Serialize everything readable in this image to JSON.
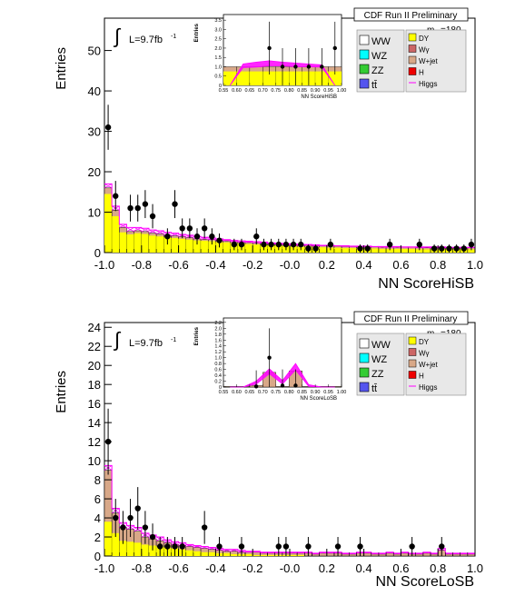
{
  "chart_data": [
    {
      "type": "histogram",
      "banner": "CDF Run II Preliminary",
      "xlabel": "NN ScoreHiSB",
      "ylabel": "Entries",
      "lumi_label": "L=9.7fb",
      "lumi_sup": "-1",
      "mass_label": "m",
      "mass_sub": "H",
      "mass_value": "=180",
      "xlim": [
        -1.0,
        1.0
      ],
      "ylim": [
        0,
        58
      ],
      "x_ticks": [
        -1.0,
        -0.8,
        -0.6,
        -0.4,
        -0.2,
        0.0,
        0.2,
        0.4,
        0.6,
        0.8,
        1.0
      ],
      "x_tick_labels": [
        "-1.0",
        "-0.8",
        "-0.6",
        "-0.4",
        "-0.2",
        "-0.0",
        "0.2",
        "0.4",
        "0.6",
        "0.8",
        "1.0"
      ],
      "y_ticks": [
        0,
        10,
        20,
        30,
        40,
        50
      ],
      "legend_left": [
        "WW",
        "WZ",
        "ZZ",
        "tt̄"
      ],
      "legend_right": [
        "DY",
        "Wγ",
        "W+jet",
        "H",
        "Higgs"
      ],
      "colors": {
        "WW": "#ffffff",
        "WZ": "#00ffff",
        "ZZ": "#33cc33",
        "tt": "#5555ee",
        "DY": "#ffff00",
        "Wg": "#cc6666",
        "Wjet": "#d8a888",
        "H": "#ee0000",
        "Higgs": "#ff00ff"
      },
      "bin_edges": [
        -1.0,
        -0.96,
        -0.92,
        -0.88,
        -0.84,
        -0.8,
        -0.76,
        -0.72,
        -0.68,
        -0.64,
        -0.6,
        -0.56,
        -0.52,
        -0.48,
        -0.44,
        -0.4,
        -0.36,
        -0.32,
        -0.28,
        -0.24,
        -0.2,
        -0.16,
        -0.12,
        -0.08,
        -0.04,
        0.0,
        0.04,
        0.08,
        0.12,
        0.16,
        0.2,
        0.24,
        0.28,
        0.32,
        0.36,
        0.4,
        0.44,
        0.48,
        0.52,
        0.56,
        0.6,
        0.64,
        0.68,
        0.72,
        0.76,
        0.8,
        0.84,
        0.88,
        0.92,
        0.96,
        1.0
      ],
      "dy_background": [
        14.5,
        9.0,
        5.0,
        4.5,
        4.8,
        4.6,
        4.2,
        4.0,
        3.8,
        3.6,
        3.4,
        3.2,
        3.0,
        2.9,
        2.8,
        2.6,
        2.5,
        2.3,
        2.2,
        2.1,
        2.0,
        1.9,
        1.8,
        1.7,
        1.6,
        1.5,
        1.4,
        1.4,
        1.3,
        1.3,
        1.2,
        1.2,
        1.1,
        1.1,
        1.0,
        1.0,
        1.0,
        0.9,
        0.9,
        0.9,
        0.9,
        0.9,
        0.8,
        0.8,
        0.8,
        0.8,
        0.8,
        0.8,
        0.8,
        0.8
      ],
      "total_background": [
        16.0,
        10.5,
        6.2,
        5.2,
        5.4,
        5.2,
        4.8,
        4.6,
        4.3,
        4.1,
        3.9,
        3.7,
        3.4,
        3.3,
        3.2,
        3.0,
        2.9,
        2.7,
        2.6,
        2.5,
        2.4,
        2.3,
        2.2,
        2.1,
        2.0,
        1.9,
        1.8,
        1.8,
        1.7,
        1.7,
        1.6,
        1.6,
        1.5,
        1.5,
        1.4,
        1.4,
        1.4,
        1.3,
        1.3,
        1.3,
        1.3,
        1.3,
        1.2,
        1.2,
        1.2,
        1.2,
        1.2,
        1.2,
        1.2,
        1.2
      ],
      "signal_band": [
        17.0,
        11.5,
        7.0,
        6.2,
        6.2,
        6.0,
        5.6,
        5.4,
        5.0,
        4.8,
        4.5,
        4.3,
        4.0,
        3.8,
        3.6,
        3.4,
        3.2,
        3.0,
        2.9,
        2.8,
        2.7,
        2.6,
        2.4,
        2.3,
        2.2,
        2.1,
        2.0,
        2.0,
        1.9,
        1.8,
        1.8,
        1.7,
        1.7,
        1.6,
        1.6,
        1.6,
        1.5,
        1.5,
        1.5,
        1.5,
        1.4,
        1.4,
        1.4,
        1.4,
        1.4,
        1.4,
        1.3,
        1.3,
        1.3,
        1.3
      ],
      "data_points": [
        {
          "x": -0.98,
          "y": 31
        },
        {
          "x": -0.94,
          "y": 14
        },
        {
          "x": -0.86,
          "y": 11
        },
        {
          "x": -0.82,
          "y": 11
        },
        {
          "x": -0.78,
          "y": 12
        },
        {
          "x": -0.74,
          "y": 9
        },
        {
          "x": -0.66,
          "y": 4
        },
        {
          "x": -0.62,
          "y": 12
        },
        {
          "x": -0.58,
          "y": 6
        },
        {
          "x": -0.54,
          "y": 6
        },
        {
          "x": -0.5,
          "y": 4
        },
        {
          "x": -0.46,
          "y": 6
        },
        {
          "x": -0.42,
          "y": 4
        },
        {
          "x": -0.38,
          "y": 3
        },
        {
          "x": -0.3,
          "y": 2
        },
        {
          "x": -0.26,
          "y": 2
        },
        {
          "x": -0.18,
          "y": 4
        },
        {
          "x": -0.14,
          "y": 2
        },
        {
          "x": -0.1,
          "y": 2
        },
        {
          "x": -0.06,
          "y": 2
        },
        {
          "x": -0.02,
          "y": 2
        },
        {
          "x": 0.02,
          "y": 2
        },
        {
          "x": 0.06,
          "y": 2
        },
        {
          "x": 0.1,
          "y": 1
        },
        {
          "x": 0.14,
          "y": 1
        },
        {
          "x": 0.22,
          "y": 2
        },
        {
          "x": 0.38,
          "y": 1
        },
        {
          "x": 0.42,
          "y": 1
        },
        {
          "x": 0.54,
          "y": 2
        },
        {
          "x": 0.7,
          "y": 2
        },
        {
          "x": 0.78,
          "y": 1
        },
        {
          "x": 0.82,
          "y": 1
        },
        {
          "x": 0.86,
          "y": 1
        },
        {
          "x": 0.9,
          "y": 1
        },
        {
          "x": 0.94,
          "y": 1
        },
        {
          "x": 0.98,
          "y": 2
        }
      ],
      "inset": {
        "ylabel": "Entries",
        "xlabel": "NN ScoreHiSB",
        "xlim": [
          0.55,
          1.0
        ],
        "ylim": [
          0,
          3.8
        ],
        "x_tick_labels": [
          "0.55",
          "0.60",
          "0.65",
          "0.70",
          "0.75",
          "0.80",
          "0.85",
          "0.90",
          "0.95",
          "1.00"
        ],
        "y_tick_labels": [
          "0",
          "0.5",
          "1.0",
          "1.5",
          "2.0",
          "2.5",
          "3.0",
          "3.5"
        ],
        "bin_edges": [
          0.55,
          0.6,
          0.65,
          0.7,
          0.75,
          0.8,
          0.85,
          0.9,
          0.95,
          1.0
        ],
        "background": [
          1.0,
          1.0,
          1.0,
          1.0,
          1.0,
          1.0,
          1.0,
          1.0,
          1.0
        ],
        "yellow_fill": [
          0.75,
          0.75,
          0.75,
          0.75,
          0.75,
          0.75,
          0.75,
          0.75,
          0.75
        ],
        "signal_lo": [
          0,
          0.95,
          0.98,
          1.05,
          1.05,
          1.0,
          1.0,
          0.98,
          0
        ],
        "signal_hi": [
          0,
          1.15,
          1.25,
          1.32,
          1.25,
          1.2,
          1.15,
          1.1,
          0
        ],
        "data_points": [
          {
            "x": 0.725,
            "y": 2
          },
          {
            "x": 0.775,
            "y": 1
          },
          {
            "x": 0.825,
            "y": 1
          },
          {
            "x": 0.875,
            "y": 1
          },
          {
            "x": 0.925,
            "y": 1
          },
          {
            "x": 0.975,
            "y": 2
          }
        ]
      }
    },
    {
      "type": "histogram",
      "banner": "CDF Run II Preliminary",
      "xlabel": "NN ScoreLoSB",
      "ylabel": "Entries",
      "lumi_label": "L=9.7fb",
      "lumi_sup": "-1",
      "mass_label": "m",
      "mass_sub": "H",
      "mass_value": "=180",
      "xlim": [
        -1.0,
        1.0
      ],
      "ylim": [
        0,
        24.5
      ],
      "x_ticks": [
        -1.0,
        -0.8,
        -0.6,
        -0.4,
        -0.2,
        0.0,
        0.2,
        0.4,
        0.6,
        0.8,
        1.0
      ],
      "x_tick_labels": [
        "-1.0",
        "-0.8",
        "-0.6",
        "-0.4",
        "-0.2",
        "-0.0",
        "0.2",
        "0.4",
        "0.6",
        "0.8",
        "1.0"
      ],
      "y_ticks": [
        0,
        2,
        4,
        6,
        8,
        10,
        12,
        14,
        16,
        18,
        20,
        22,
        24
      ],
      "legend_left": [
        "WW",
        "WZ",
        "ZZ",
        "tt̄"
      ],
      "legend_right": [
        "DY",
        "Wγ",
        "W+jet",
        "H",
        "Higgs"
      ],
      "colors": {
        "WW": "#ffffff",
        "WZ": "#00ffff",
        "ZZ": "#33cc33",
        "tt": "#5555ee",
        "DY": "#ffff00",
        "Wg": "#cc6666",
        "Wjet": "#d8a888",
        "H": "#ee0000",
        "Higgs": "#ff00ff"
      },
      "bin_edges": [
        -1.0,
        -0.96,
        -0.92,
        -0.88,
        -0.84,
        -0.8,
        -0.76,
        -0.72,
        -0.68,
        -0.64,
        -0.6,
        -0.56,
        -0.52,
        -0.48,
        -0.44,
        -0.4,
        -0.36,
        -0.32,
        -0.28,
        -0.24,
        -0.2,
        -0.16,
        -0.12,
        -0.08,
        -0.04,
        0.0,
        0.04,
        0.08,
        0.12,
        0.16,
        0.2,
        0.24,
        0.28,
        0.32,
        0.36,
        0.4,
        0.44,
        0.48,
        0.52,
        0.56,
        0.6,
        0.64,
        0.68,
        0.72,
        0.76,
        0.8,
        0.84,
        0.88,
        0.92,
        0.96,
        1.0
      ],
      "dy_background": [
        3.6,
        2.4,
        1.6,
        1.5,
        1.4,
        1.2,
        1.1,
        1.0,
        0.9,
        0.8,
        0.7,
        0.6,
        0.5,
        0.4,
        0.4,
        0.3,
        0.3,
        0.2,
        0.2,
        0.2,
        0.1,
        0.1,
        0.1,
        0.1,
        0.1,
        0.1,
        0.1,
        0.0,
        0.0,
        0.0,
        0.0,
        0.0,
        0.0,
        0.0,
        0.0,
        0.0,
        0.0,
        0.0,
        0.0,
        0.0,
        0.0,
        0.0,
        0.0,
        0.0,
        0.0,
        0.0,
        0.0,
        0.0,
        0.0,
        0.0
      ],
      "total_background": [
        9.0,
        4.5,
        3.0,
        2.8,
        2.6,
        2.0,
        1.8,
        1.6,
        1.4,
        1.2,
        1.1,
        1.0,
        0.9,
        0.8,
        0.7,
        0.6,
        0.5,
        0.5,
        0.4,
        0.4,
        0.4,
        0.3,
        0.3,
        0.3,
        0.3,
        0.3,
        0.3,
        0.3,
        0.2,
        0.3,
        0.3,
        0.3,
        0.2,
        0.2,
        0.3,
        0.3,
        0.2,
        0.2,
        0.3,
        0.2,
        0.3,
        0.2,
        0.2,
        0.3,
        0.2,
        0.6,
        0.2,
        0.2,
        0.2,
        0.2
      ],
      "signal_band": [
        9.5,
        5.0,
        3.5,
        3.2,
        3.0,
        2.4,
        2.2,
        2.0,
        1.7,
        1.5,
        1.4,
        1.2,
        1.1,
        1.0,
        0.9,
        0.8,
        0.7,
        0.7,
        0.6,
        0.5,
        0.5,
        0.4,
        0.4,
        0.4,
        0.4,
        0.4,
        0.4,
        0.4,
        0.3,
        0.4,
        0.4,
        0.4,
        0.3,
        0.3,
        0.4,
        0.4,
        0.3,
        0.3,
        0.4,
        0.3,
        0.4,
        0.3,
        0.3,
        0.4,
        0.3,
        0.8,
        0.3,
        0.3,
        0.3,
        0.3
      ],
      "data_points": [
        {
          "x": -0.98,
          "y": 12
        },
        {
          "x": -0.94,
          "y": 4
        },
        {
          "x": -0.9,
          "y": 3
        },
        {
          "x": -0.86,
          "y": 4
        },
        {
          "x": -0.82,
          "y": 5
        },
        {
          "x": -0.78,
          "y": 3
        },
        {
          "x": -0.74,
          "y": 2
        },
        {
          "x": -0.7,
          "y": 1
        },
        {
          "x": -0.66,
          "y": 1
        },
        {
          "x": -0.62,
          "y": 1
        },
        {
          "x": -0.58,
          "y": 1
        },
        {
          "x": -0.46,
          "y": 3
        },
        {
          "x": -0.38,
          "y": 1
        },
        {
          "x": -0.26,
          "y": 1
        },
        {
          "x": -0.06,
          "y": 1
        },
        {
          "x": -0.02,
          "y": 1
        },
        {
          "x": 0.1,
          "y": 1
        },
        {
          "x": 0.26,
          "y": 1
        },
        {
          "x": 0.38,
          "y": 1
        },
        {
          "x": 0.66,
          "y": 1
        },
        {
          "x": 0.82,
          "y": 1
        }
      ],
      "inset": {
        "ylabel": "Entries",
        "xlabel": "NN ScoreLoSB",
        "xlim": [
          0.55,
          1.0
        ],
        "ylim": [
          0,
          2.35
        ],
        "x_tick_labels": [
          "0.55",
          "0.60",
          "0.65",
          "0.70",
          "0.75",
          "0.80",
          "0.85",
          "0.90",
          "0.95",
          "1.00"
        ],
        "y_tick_labels": [
          "0",
          "0.2",
          "0.4",
          "0.6",
          "0.8",
          "1.0",
          "1.2",
          "1.4",
          "1.6",
          "1.8",
          "2.0",
          "2.2"
        ],
        "bin_edges": [
          0.55,
          0.6,
          0.65,
          0.7,
          0.75,
          0.8,
          0.85,
          0.9,
          0.95,
          1.0
        ],
        "background": [
          0.02,
          0.02,
          0.05,
          0.5,
          0.02,
          0.55,
          0.02,
          0.02,
          0.02
        ],
        "yellow_fill": [
          0,
          0,
          0,
          0,
          0,
          0,
          0,
          0,
          0
        ],
        "signal_lo": [
          0,
          0,
          0.1,
          0.45,
          0.1,
          0.58,
          0.02,
          0,
          0
        ],
        "signal_hi": [
          0,
          0,
          0.2,
          0.62,
          0.22,
          0.8,
          0.08,
          0,
          0
        ],
        "data_points": [
          {
            "x": 0.675,
            "y": 0.02
          },
          {
            "x": 0.725,
            "y": 1.0
          },
          {
            "x": 0.775,
            "y": 0.05
          },
          {
            "x": 0.825,
            "y": 0.05
          }
        ]
      }
    }
  ]
}
